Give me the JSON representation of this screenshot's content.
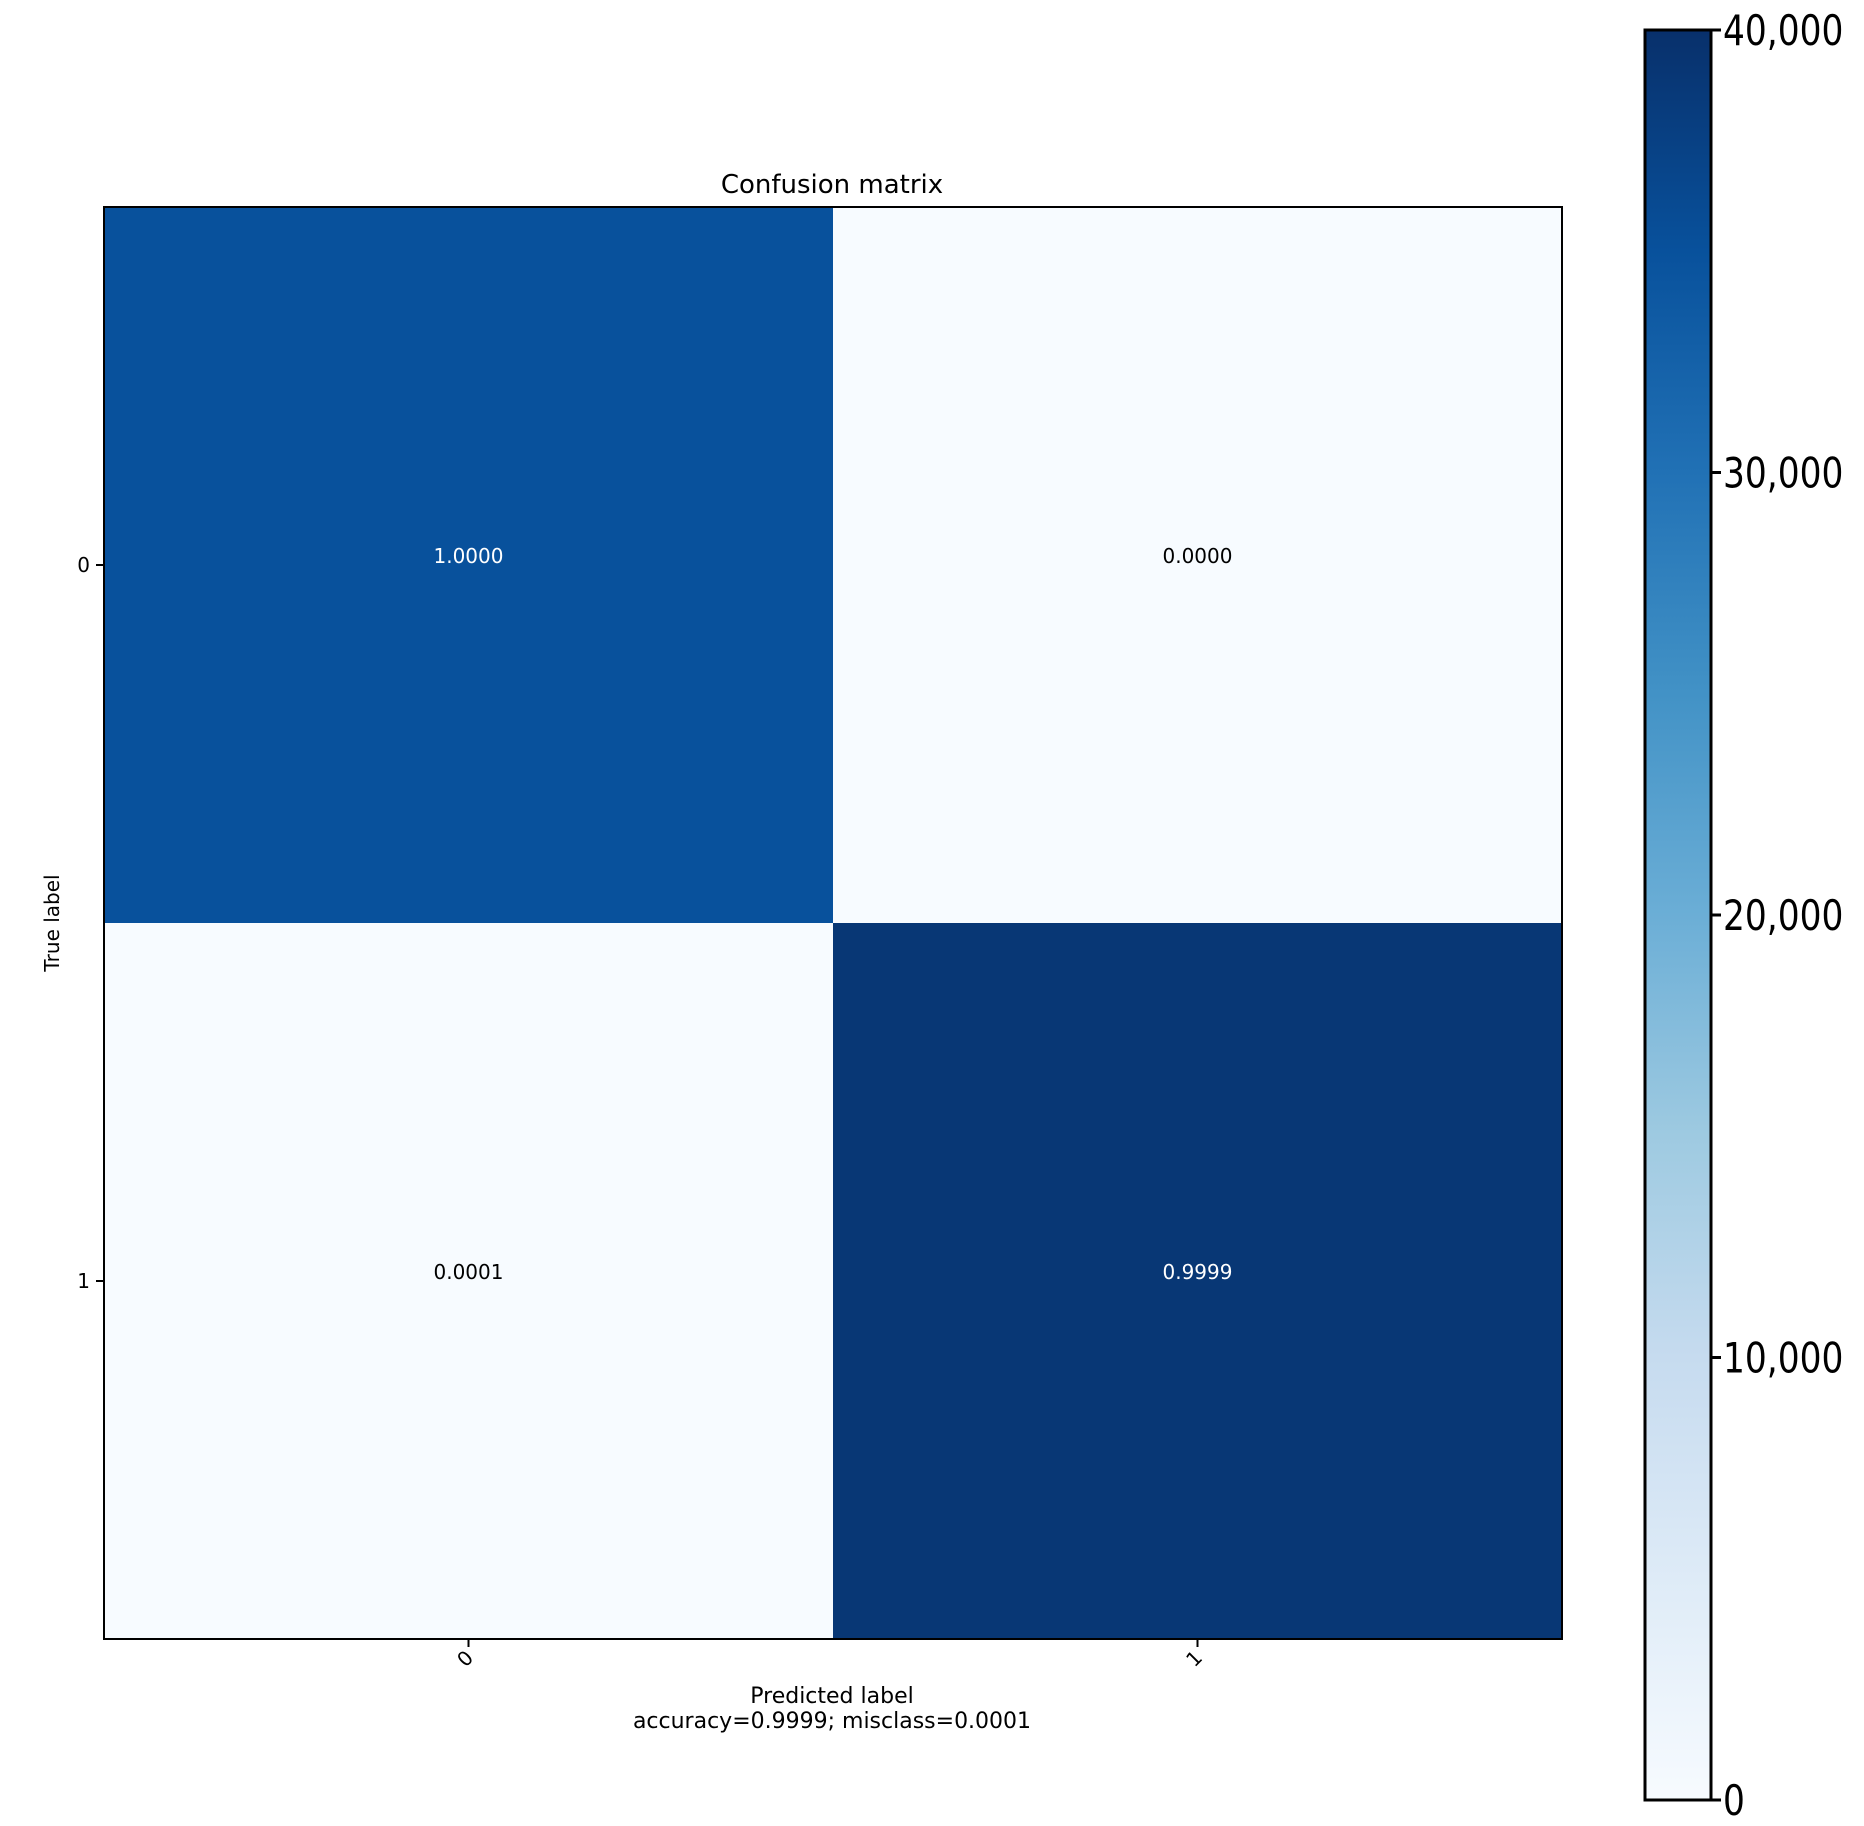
{
  "chart_data": {
    "type": "heatmap",
    "title": "Confusion matrix",
    "ylabel": "True label",
    "xlabel": "Predicted label",
    "xlabel_line2": "accuracy=0.9999; misclass=0.0001",
    "x_categories": [
      "0",
      "1"
    ],
    "y_categories": [
      "0",
      "1"
    ],
    "cell_labels": [
      [
        "1.0000",
        "0.0000"
      ],
      [
        "0.0001",
        "0.9999"
      ]
    ],
    "cell_values": [
      [
        35000,
        0
      ],
      [
        4,
        39000
      ]
    ],
    "colormap": "Blues",
    "grid": false,
    "colorbar": {
      "position": "right",
      "range": [
        0,
        40000
      ],
      "ticks": [
        0,
        10000,
        20000,
        30000,
        40000
      ],
      "tick_labels": [
        "0",
        "10,000",
        "20,000",
        "30,000",
        "40,000"
      ]
    },
    "colors": {
      "low": "#f7fbff",
      "high": "#08306b"
    }
  }
}
